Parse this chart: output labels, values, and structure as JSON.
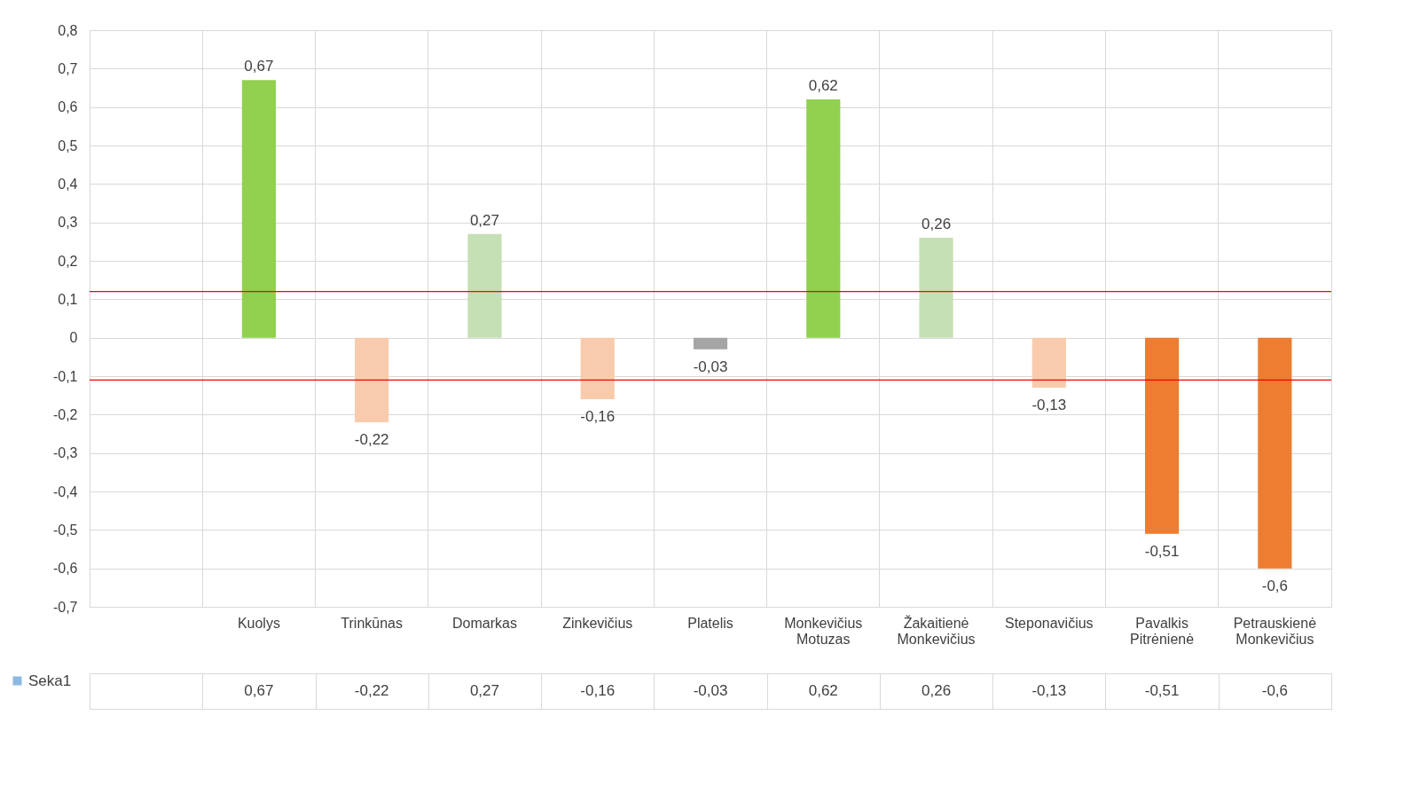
{
  "chart_data": {
    "type": "bar",
    "categories": [
      null,
      "Kuolys",
      "Trinkūnas",
      "Domarkas",
      "Zinkevičius",
      "Platelis",
      "Monkevičius Motuzas",
      "Žakaitienė Monkevičius",
      "Steponavičius",
      "Pavalkis Pitrėnienė",
      "Petrauskienė Monkevičius"
    ],
    "series": [
      {
        "name": "Seka1",
        "color": "#5b9bd5",
        "values": [
          null,
          0.67,
          -0.22,
          0.27,
          -0.16,
          -0.03,
          0.62,
          0.26,
          -0.13,
          -0.51,
          -0.6
        ],
        "value_labels": [
          null,
          "0,67",
          "-0,22",
          "0,27",
          "-0,16",
          "-0,03",
          "0,62",
          "0,26",
          "-0,13",
          "-0,51",
          "-0,6"
        ],
        "colors": [
          "#5b9bd5",
          "#92d050",
          "#f8cbad",
          "#c5e0b4",
          "#f8cbad",
          "#a5a5a5",
          "#92d050",
          "#c5e0b4",
          "#f8cbad",
          "#ed7d31",
          "#ed7d31"
        ]
      }
    ],
    "ylim": [
      -0.7,
      0.8
    ],
    "yticks": [
      {
        "value": -0.7,
        "label": "-0,7"
      },
      {
        "value": -0.6,
        "label": "-0,6"
      },
      {
        "value": -0.5,
        "label": "-0,5"
      },
      {
        "value": -0.4,
        "label": "-0,4"
      },
      {
        "value": -0.3,
        "label": "-0,3"
      },
      {
        "value": -0.2,
        "label": "-0,2"
      },
      {
        "value": -0.1,
        "label": "-0,1"
      },
      0,
      {
        "value": 0.1,
        "label": "0,1"
      },
      {
        "value": 0.2,
        "label": "0,2"
      },
      {
        "value": 0.3,
        "label": "0,3"
      },
      {
        "value": 0.4,
        "label": "0,4"
      },
      {
        "value": 0.5,
        "label": "0,5"
      },
      {
        "value": 0.6,
        "label": "0,6"
      },
      {
        "value": 0.7,
        "label": "0,7"
      },
      {
        "value": 0.8,
        "label": "0,8"
      }
    ],
    "ref_lines": [
      {
        "axis": "y",
        "value": 0.12,
        "color": "#ff0000"
      },
      {
        "axis": "y",
        "value": -0.11,
        "color": "#ff0000"
      }
    ],
    "grid": true,
    "legend": "bottom left"
  }
}
